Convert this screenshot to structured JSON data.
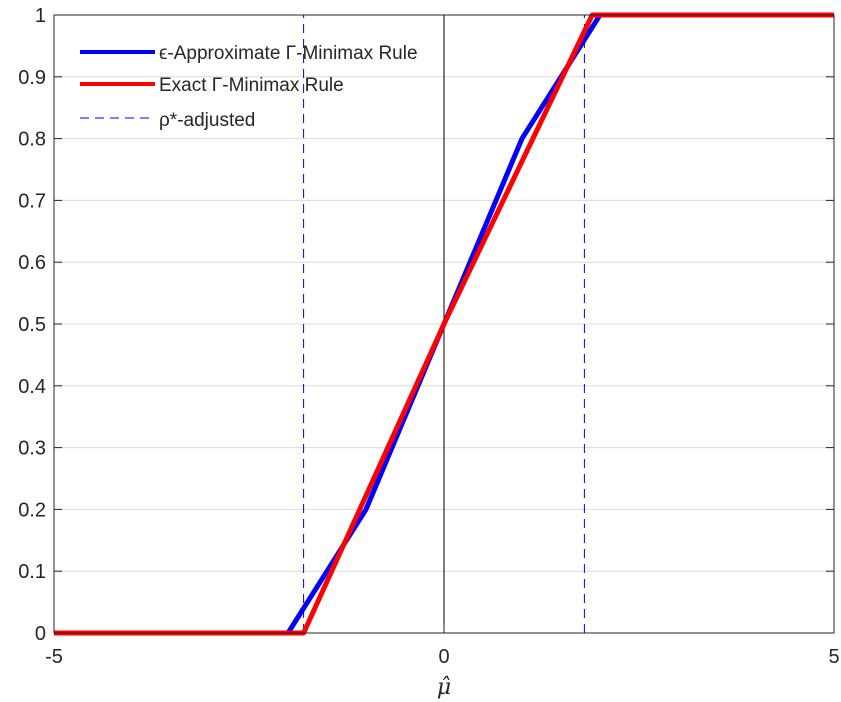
{
  "chart_data": {
    "type": "line",
    "xlabel": "μ̂",
    "ylabel": "",
    "xlim": [
      -5,
      5
    ],
    "ylim": [
      0,
      1
    ],
    "xticks": [
      "-5",
      "0",
      "5"
    ],
    "yticks": [
      "0",
      "0.1",
      "0.2",
      "0.3",
      "0.4",
      "0.5",
      "0.6",
      "0.7",
      "0.8",
      "0.9",
      "1"
    ],
    "grid": "horizontal",
    "legend_position": "top-left",
    "series": [
      {
        "name": "ϵ-Approximate Γ-Minimax Rule",
        "color": "#0000ff",
        "style": "solid",
        "x": [
          -5,
          -2,
          -1.5,
          -1,
          -0.5,
          0,
          0.5,
          1,
          1.5,
          2,
          5
        ],
        "y": [
          0,
          0,
          0.1,
          0.2,
          0.35,
          0.5,
          0.65,
          0.8,
          0.9,
          1,
          1
        ]
      },
      {
        "name": "Exact Γ-Minimax Rule",
        "color": "#ff0000",
        "style": "solid",
        "x": [
          -5,
          -1.8,
          0,
          1.9,
          5
        ],
        "y": [
          0,
          0,
          0.5,
          1,
          1
        ]
      },
      {
        "name": "ρ*-adjusted",
        "color": "#0000ff",
        "style": "dashed",
        "x": [
          -1.8,
          -1.8
        ],
        "y": [
          0,
          1
        ]
      },
      {
        "name": "ρ*-adjusted (right)",
        "color": "#0000ff",
        "style": "dashed",
        "x": [
          1.8,
          1.8
        ],
        "y": [
          0,
          1
        ]
      }
    ],
    "reference_line": {
      "x": 0,
      "color": "#000000"
    }
  },
  "legend": {
    "items": [
      {
        "label": "ϵ-Approximate Γ-Minimax Rule",
        "color": "#0000ff",
        "style": "solid"
      },
      {
        "label": "Exact Γ-Minimax Rule",
        "color": "#ff0000",
        "style": "solid"
      },
      {
        "label": "ρ*-adjusted",
        "color": "#0000ff",
        "style": "dashed"
      }
    ]
  }
}
